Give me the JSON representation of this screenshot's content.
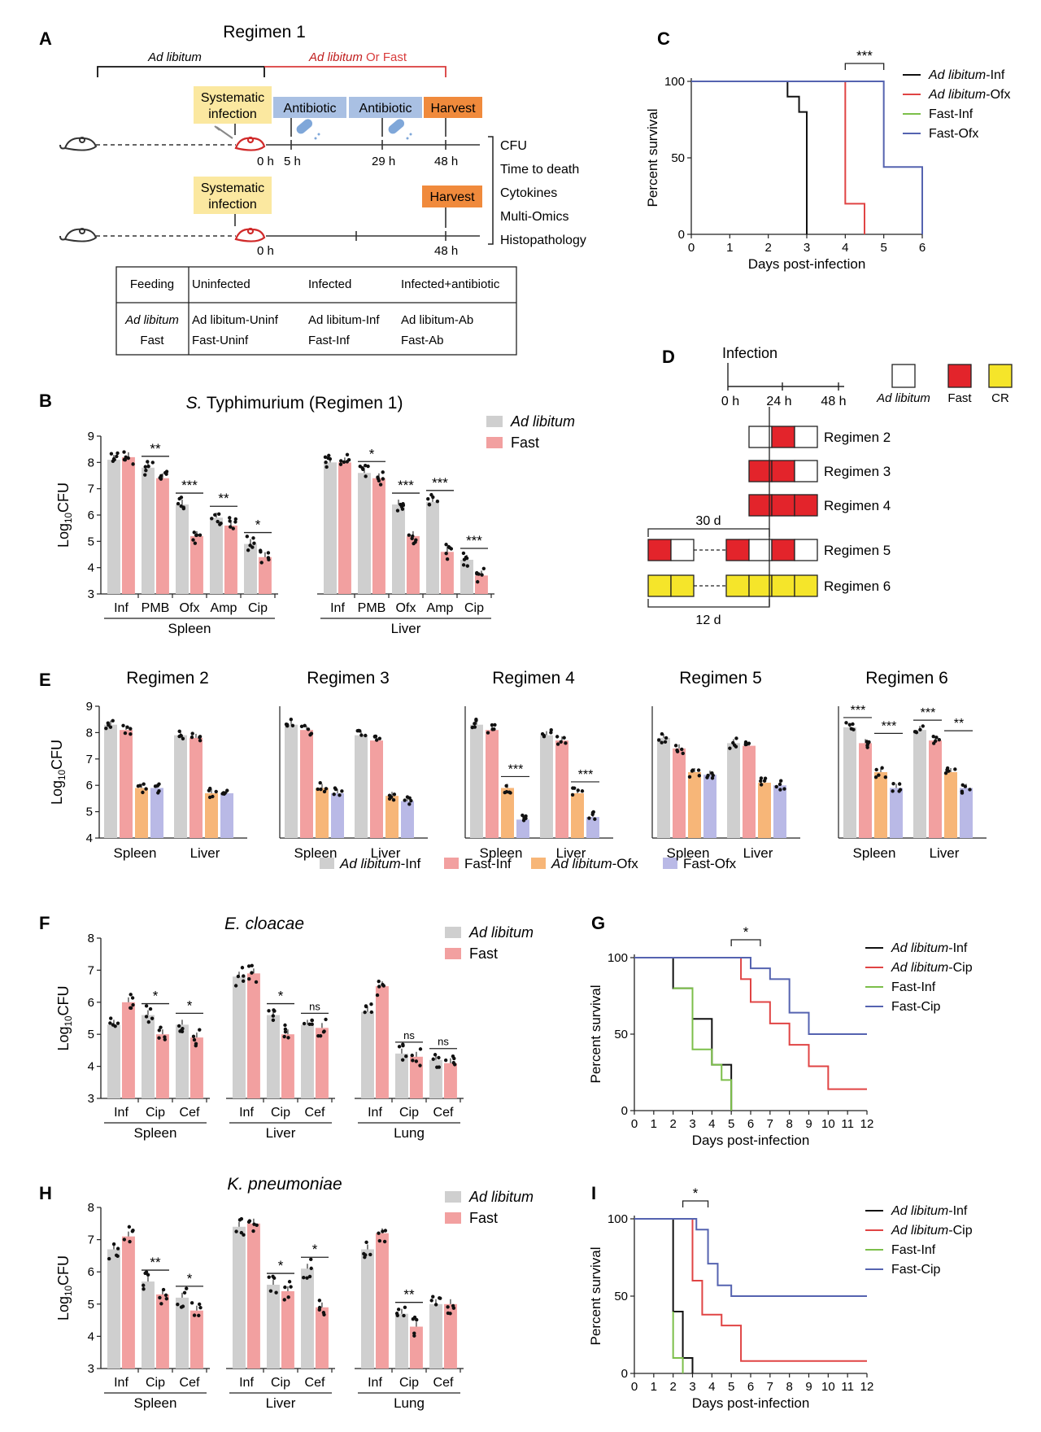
{
  "panels": {
    "A": {
      "letter": "A",
      "title": "Regimen 1",
      "ad_libitum": "Ad libitum",
      "ad_libitum_2": "Ad libitum",
      "or_fast": " Or Fast",
      "systemic_infection": [
        "Systematic",
        "infection"
      ],
      "antibiotic": "Antibiotic",
      "harvest": "Harvest",
      "times_top": [
        "0 h",
        "5 h",
        "29 h",
        "48 h"
      ],
      "times_bottom": [
        "0 h",
        "48 h"
      ],
      "readouts": [
        "CFU",
        "Time to death",
        "Cytokines",
        "Multi-Omics",
        "Histopathology"
      ],
      "table": {
        "headers": [
          "Feeding",
          "Uninfected",
          "Infected",
          "Infected+antibiotic"
        ],
        "row1": [
          "Ad libitum",
          "Ad libitum-Uninf",
          "Ad libitum-Inf",
          "Ad libitum-Ab"
        ],
        "row2": [
          "Fast",
          "Fast-Uninf",
          "Fast-Inf",
          "Fast-Ab"
        ]
      }
    },
    "D": {
      "letter": "D",
      "infection": "Infection",
      "times": [
        "0 h",
        "24 h",
        "48 h"
      ],
      "legend": [
        "Ad libitum",
        "Fast",
        "CR"
      ],
      "regimens": [
        "Regimen 2",
        "Regimen 3",
        "Regimen 4",
        "Regimen 5",
        "Regimen 6"
      ],
      "durations": [
        "30 d",
        "12 d"
      ]
    },
    "E": {
      "letter": "E",
      "legend": [
        "Ad libitum-Inf",
        "Fast-Inf",
        "Ad libitum-Ofx",
        "Fast-Ofx"
      ]
    }
  },
  "colors": {
    "grey": "#cfcfcf",
    "pink": "#f2a0a0",
    "orange": "#f7b678",
    "lavender": "#b9b9e6",
    "black": "#111111",
    "red": "#e04444",
    "green": "#7cbf4a",
    "blue": "#5563b0",
    "fast_red": "#e3242b",
    "cr_yellow": "#f5e52a",
    "box_yellow": "#fbe8a0",
    "box_blue": "#a9c0e3",
    "box_orange": "#f08a3c"
  },
  "chart_data": [
    {
      "id": "B",
      "letter": "B",
      "type": "bar",
      "title": "S. Typhimurium (Regimen 1)",
      "title_species": "S.",
      "title_rest": " Typhimurium (Regimen 1)",
      "ylabel": "Log10CFU",
      "ylim": [
        3,
        9
      ],
      "yticks": [
        3,
        4,
        5,
        6,
        7,
        8,
        9
      ],
      "series_names": [
        "Ad libitum",
        "Fast"
      ],
      "groups": [
        {
          "name": "Spleen",
          "categories": [
            "Inf",
            "PMB",
            "Ofx",
            "Amp",
            "Cip"
          ],
          "series": [
            [
              8.1,
              7.8,
              6.4,
              5.9,
              4.9
            ],
            [
              8.2,
              7.4,
              5.2,
              5.6,
              4.4
            ]
          ],
          "sig": [
            "",
            "**",
            "***",
            "**",
            "*"
          ]
        },
        {
          "name": "Liver",
          "categories": [
            "Inf",
            "PMB",
            "Ofx",
            "Amp",
            "Cip"
          ],
          "series": [
            [
              8.0,
              7.6,
              6.4,
              6.5,
              4.3
            ],
            [
              8.0,
              7.4,
              5.2,
              4.6,
              3.7
            ]
          ],
          "sig": [
            "",
            "*",
            "***",
            "***",
            "***"
          ]
        }
      ]
    },
    {
      "id": "C",
      "letter": "C",
      "type": "line",
      "xlabel": "Days post-infection",
      "ylabel": "Percent survival",
      "xlim": [
        0,
        6
      ],
      "ylim": [
        0,
        100
      ],
      "xticks": [
        0,
        1,
        2,
        3,
        4,
        5,
        6
      ],
      "yticks": [
        0,
        50,
        100
      ],
      "sig": "***",
      "sig_x": [
        4,
        5
      ],
      "series": [
        {
          "name": "Ad libitum-Inf",
          "name_it": "Ad libitum",
          "name_rest": "-Inf",
          "color": "#111111",
          "x": [
            0,
            2.5,
            2.5,
            2.8,
            2.8,
            3,
            3
          ],
          "y": [
            100,
            100,
            90,
            90,
            80,
            80,
            0
          ]
        },
        {
          "name": "Ad libitum-Ofx",
          "name_it": "Ad libitum",
          "name_rest": "-Ofx",
          "color": "#e04444",
          "x": [
            0,
            4,
            4,
            4.5,
            4.5
          ],
          "y": [
            100,
            100,
            20,
            20,
            0
          ]
        },
        {
          "name": "Fast-Inf",
          "name_it": "",
          "name_rest": "Fast-Inf",
          "color": "#7cbf4a",
          "x": [
            2.8,
            3
          ],
          "y": [
            100,
            100
          ]
        },
        {
          "name": "Fast-Ofx",
          "name_it": "",
          "name_rest": "Fast-Ofx",
          "color": "#5563b0",
          "x": [
            0,
            5,
            5,
            6,
            6
          ],
          "y": [
            100,
            100,
            44,
            44,
            0
          ]
        }
      ]
    },
    {
      "id": "E",
      "letter": "E",
      "type": "bar",
      "ylabel": "Log10CFU",
      "ylim": [
        4,
        9
      ],
      "yticks": [
        4,
        5,
        6,
        7,
        8,
        9
      ],
      "series_names": [
        "Ad libitum-Inf",
        "Fast-Inf",
        "Ad libitum-Ofx",
        "Fast-Ofx"
      ],
      "subplots": [
        {
          "title": "Regimen 2",
          "tissues": [
            "Spleen",
            "Liver"
          ],
          "values": [
            [
              8.3,
              8.1,
              5.9,
              5.9
            ],
            [
              7.9,
              7.8,
              5.7,
              5.7
            ]
          ],
          "sig": [
            [],
            []
          ]
        },
        {
          "title": "Regimen 3",
          "tissues": [
            "Spleen",
            "Liver"
          ],
          "values": [
            [
              8.3,
              8.1,
              5.9,
              5.7
            ],
            [
              7.9,
              7.7,
              5.6,
              5.4
            ]
          ],
          "sig": [
            [],
            []
          ]
        },
        {
          "title": "Regimen 4",
          "tissues": [
            "Spleen",
            "Liver"
          ],
          "values": [
            [
              8.3,
              8.1,
              5.9,
              4.7
            ],
            [
              7.9,
              7.7,
              5.7,
              4.8
            ]
          ],
          "sig": [
            [
              "***"
            ],
            [
              "***"
            ]
          ]
        },
        {
          "title": "Regimen 5",
          "tissues": [
            "Spleen",
            "Liver"
          ],
          "values": [
            [
              7.8,
              7.4,
              6.5,
              6.4
            ],
            [
              7.6,
              7.5,
              6.1,
              6.0
            ]
          ],
          "sig": [
            [],
            []
          ]
        },
        {
          "title": "Regimen 6",
          "tissues": [
            "Spleen",
            "Liver"
          ],
          "values": [
            [
              8.2,
              7.6,
              6.5,
              5.9
            ],
            [
              8.1,
              7.7,
              6.5,
              5.9
            ]
          ],
          "sig": [
            [
              "***",
              "***"
            ],
            [
              "***",
              "**"
            ]
          ]
        }
      ]
    },
    {
      "id": "F",
      "letter": "F",
      "type": "bar",
      "title": "E. cloacae",
      "ylabel": "Log10CFU",
      "ylim": [
        3,
        8
      ],
      "yticks": [
        3,
        4,
        5,
        6,
        7,
        8
      ],
      "series_names": [
        "Ad libitum",
        "Fast"
      ],
      "groups": [
        {
          "name": "Spleen",
          "categories": [
            "Inf",
            "Cip",
            "Cef"
          ],
          "series": [
            [
              5.3,
              5.6,
              5.3
            ],
            [
              6.0,
              5.0,
              4.9
            ]
          ],
          "sig": [
            "",
            "*",
            "*"
          ]
        },
        {
          "name": "Liver",
          "categories": [
            "Inf",
            "Cip",
            "Cef"
          ],
          "series": [
            [
              6.8,
              5.6,
              5.3
            ],
            [
              6.9,
              5.0,
              5.2
            ]
          ],
          "sig": [
            "",
            "*",
            "ns"
          ]
        },
        {
          "name": "Lung",
          "categories": [
            "Inf",
            "Cip",
            "Cef"
          ],
          "series": [
            [
              5.7,
              4.4,
              4.2
            ],
            [
              6.5,
              4.3,
              4.1
            ]
          ],
          "sig": [
            "",
            "ns",
            "ns"
          ]
        }
      ]
    },
    {
      "id": "G",
      "letter": "G",
      "type": "line",
      "xlabel": "Days post-infection",
      "ylabel": "Percent survival",
      "xlim": [
        0,
        12
      ],
      "ylim": [
        0,
        100
      ],
      "xticks": [
        0,
        1,
        2,
        3,
        4,
        5,
        6,
        7,
        8,
        9,
        10,
        11,
        12
      ],
      "yticks": [
        0,
        50,
        100
      ],
      "sig": "*",
      "sig_x": [
        5,
        6.5
      ],
      "series": [
        {
          "name": "Ad libitum-Inf",
          "name_it": "Ad libitum",
          "name_rest": "-Inf",
          "color": "#111111",
          "x": [
            0,
            2,
            2,
            3,
            3,
            4,
            4,
            5,
            5
          ],
          "y": [
            100,
            100,
            80,
            80,
            60,
            60,
            30,
            30,
            0
          ]
        },
        {
          "name": "Ad libitum-Cip",
          "name_it": "Ad libitum",
          "name_rest": "-Cip",
          "color": "#e04444",
          "x": [
            0,
            5.5,
            5.5,
            6,
            6,
            7,
            7,
            8,
            8,
            9,
            9,
            10,
            10,
            12
          ],
          "y": [
            100,
            100,
            86,
            86,
            71,
            71,
            57,
            57,
            43,
            43,
            29,
            29,
            14,
            14
          ]
        },
        {
          "name": "Fast-Inf",
          "name_it": "",
          "name_rest": "Fast-Inf",
          "color": "#7cbf4a",
          "x": [
            2,
            3,
            3,
            4,
            4,
            4.5,
            4.5,
            5,
            5
          ],
          "y": [
            80,
            80,
            40,
            40,
            30,
            30,
            20,
            20,
            0
          ]
        },
        {
          "name": "Fast-Cip",
          "name_it": "",
          "name_rest": "Fast-Cip",
          "color": "#5563b0",
          "x": [
            0,
            6,
            6,
            7,
            7,
            8,
            8,
            9,
            9,
            12
          ],
          "y": [
            100,
            100,
            93,
            93,
            86,
            86,
            64,
            64,
            50,
            50
          ]
        }
      ]
    },
    {
      "id": "H",
      "letter": "H",
      "type": "bar",
      "title": "K. pneumoniae",
      "ylabel": "Log10CFU",
      "ylim": [
        3,
        8
      ],
      "yticks": [
        3,
        4,
        5,
        6,
        7,
        8
      ],
      "series_names": [
        "Ad libitum",
        "Fast"
      ],
      "groups": [
        {
          "name": "Spleen",
          "categories": [
            "Inf",
            "Cip",
            "Cef"
          ],
          "series": [
            [
              6.7,
              5.7,
              5.2
            ],
            [
              7.1,
              5.3,
              4.8
            ]
          ],
          "sig": [
            "",
            "**",
            "*"
          ]
        },
        {
          "name": "Liver",
          "categories": [
            "Inf",
            "Cip",
            "Cef"
          ],
          "series": [
            [
              7.4,
              5.6,
              6.1
            ],
            [
              7.5,
              5.4,
              4.9
            ]
          ],
          "sig": [
            "",
            "*",
            "*"
          ]
        },
        {
          "name": "Lung",
          "categories": [
            "Inf",
            "Cip",
            "Cef"
          ],
          "series": [
            [
              6.7,
              4.7,
              5.0
            ],
            [
              7.2,
              4.3,
              5.0
            ]
          ],
          "sig": [
            "",
            "**",
            ""
          ]
        }
      ]
    },
    {
      "id": "I",
      "letter": "I",
      "type": "line",
      "xlabel": "Days post-infection",
      "ylabel": "Percent survival",
      "xlim": [
        0,
        12
      ],
      "ylim": [
        0,
        100
      ],
      "xticks": [
        0,
        1,
        2,
        3,
        4,
        5,
        6,
        7,
        8,
        9,
        10,
        11,
        12
      ],
      "yticks": [
        0,
        50,
        100
      ],
      "sig": "*",
      "sig_x": [
        2.5,
        3.8
      ],
      "series": [
        {
          "name": "Ad libitum-Inf",
          "name_it": "Ad libitum",
          "name_rest": "-Inf",
          "color": "#111111",
          "x": [
            0,
            2,
            2,
            2.5,
            2.5,
            3,
            3
          ],
          "y": [
            100,
            100,
            40,
            40,
            10,
            10,
            0
          ]
        },
        {
          "name": "Ad libitum-Cip",
          "name_it": "Ad libitum",
          "name_rest": "-Cip",
          "color": "#e04444",
          "x": [
            0,
            3,
            3,
            3.5,
            3.5,
            4.5,
            4.5,
            5.5,
            5.5,
            12
          ],
          "y": [
            100,
            100,
            60,
            60,
            38,
            38,
            31,
            31,
            8,
            8
          ]
        },
        {
          "name": "Fast-Inf",
          "name_it": "",
          "name_rest": "Fast-Inf",
          "color": "#7cbf4a",
          "x": [
            2,
            2,
            2.5,
            2.5
          ],
          "y": [
            40,
            10,
            10,
            0
          ]
        },
        {
          "name": "Fast-Cip",
          "name_it": "",
          "name_rest": "Fast-Cip",
          "color": "#5563b0",
          "x": [
            0,
            3.2,
            3.2,
            3.8,
            3.8,
            4.3,
            4.3,
            5,
            5,
            12
          ],
          "y": [
            100,
            100,
            93,
            93,
            71,
            71,
            57,
            57,
            50,
            50
          ]
        }
      ]
    }
  ]
}
